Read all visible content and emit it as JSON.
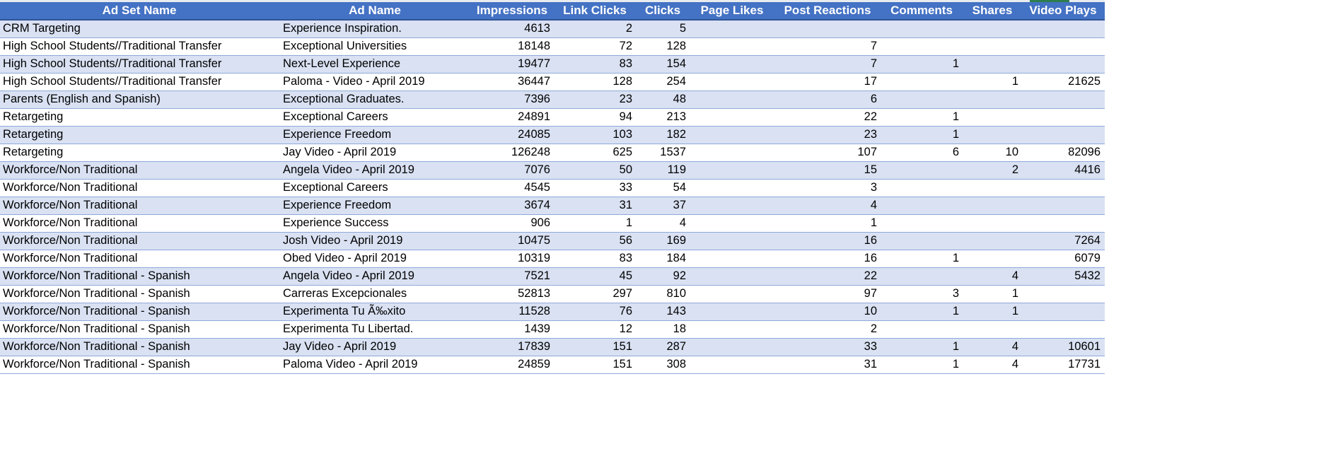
{
  "columns": [
    "Ad Set Name",
    "Ad Name",
    "Impressions",
    "Link Clicks",
    "Clicks",
    "Page Likes",
    "Post Reactions",
    "Comments",
    "Shares",
    "Video Plays"
  ],
  "rows": [
    [
      "CRM Targeting",
      "Experience Inspiration.",
      "4613",
      "2",
      "5",
      "",
      "",
      "",
      "",
      ""
    ],
    [
      "High School Students//Traditional Transfer",
      "Exceptional Universities",
      "18148",
      "72",
      "128",
      "",
      "7",
      "",
      "",
      ""
    ],
    [
      "High School Students//Traditional Transfer",
      "Next-Level Experience",
      "19477",
      "83",
      "154",
      "",
      "7",
      "1",
      "",
      ""
    ],
    [
      "High School Students//Traditional Transfer",
      "Paloma - Video - April 2019",
      "36447",
      "128",
      "254",
      "",
      "17",
      "",
      "1",
      "21625"
    ],
    [
      "Parents (English and Spanish)",
      "Exceptional Graduates.",
      "7396",
      "23",
      "48",
      "",
      "6",
      "",
      "",
      ""
    ],
    [
      "Retargeting",
      "Exceptional Careers",
      "24891",
      "94",
      "213",
      "",
      "22",
      "1",
      "",
      ""
    ],
    [
      "Retargeting",
      "Experience Freedom",
      "24085",
      "103",
      "182",
      "",
      "23",
      "1",
      "",
      ""
    ],
    [
      "Retargeting",
      "Jay Video - April 2019",
      "126248",
      "625",
      "1537",
      "",
      "107",
      "6",
      "10",
      "82096"
    ],
    [
      "Workforce/Non Traditional",
      "Angela Video - April 2019",
      "7076",
      "50",
      "119",
      "",
      "15",
      "",
      "2",
      "4416"
    ],
    [
      "Workforce/Non Traditional",
      "Exceptional Careers",
      "4545",
      "33",
      "54",
      "",
      "3",
      "",
      "",
      ""
    ],
    [
      "Workforce/Non Traditional",
      "Experience Freedom",
      "3674",
      "31",
      "37",
      "",
      "4",
      "",
      "",
      ""
    ],
    [
      "Workforce/Non Traditional",
      "Experience Success",
      "906",
      "1",
      "4",
      "",
      "1",
      "",
      "",
      ""
    ],
    [
      "Workforce/Non Traditional",
      "Josh Video - April 2019",
      "10475",
      "56",
      "169",
      "",
      "16",
      "",
      "",
      "7264"
    ],
    [
      "Workforce/Non Traditional",
      "Obed Video - April 2019",
      "10319",
      "83",
      "184",
      "",
      "16",
      "1",
      "",
      "6079"
    ],
    [
      "Workforce/Non Traditional - Spanish",
      "Angela Video - April 2019",
      "7521",
      "45",
      "92",
      "",
      "22",
      "",
      "4",
      "5432"
    ],
    [
      "Workforce/Non Traditional - Spanish",
      "Carreras Excepcionales",
      "52813",
      "297",
      "810",
      "",
      "97",
      "3",
      "1",
      ""
    ],
    [
      "Workforce/Non Traditional - Spanish",
      "Experimenta Tu Ã‰xito",
      "11528",
      "76",
      "143",
      "",
      "10",
      "1",
      "1",
      ""
    ],
    [
      "Workforce/Non Traditional - Spanish",
      "Experimenta Tu Libertad.",
      "1439",
      "12",
      "18",
      "",
      "2",
      "",
      "",
      ""
    ],
    [
      "Workforce/Non Traditional - Spanish",
      "Jay  Video - April 2019",
      "17839",
      "151",
      "287",
      "",
      "33",
      "1",
      "4",
      "10601"
    ],
    [
      "Workforce/Non Traditional - Spanish",
      "Paloma Video - April 2019",
      "24859",
      "151",
      "308",
      "",
      "31",
      "1",
      "4",
      "17731"
    ]
  ]
}
